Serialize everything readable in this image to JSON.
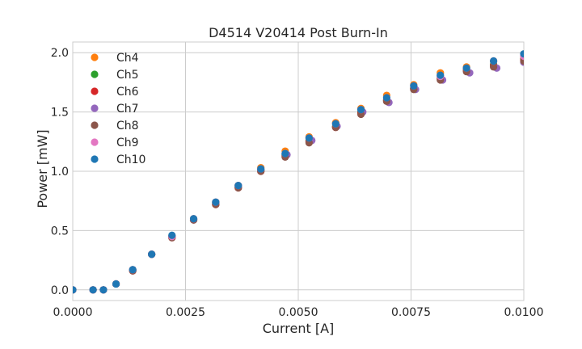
{
  "chart_data": {
    "type": "scatter",
    "title": "D4514 V20414 Post Burn-In",
    "xlabel": "Current [A]",
    "ylabel": "Power [mW]",
    "xlim": [
      0.0,
      0.01
    ],
    "ylim": [
      -0.09,
      2.09
    ],
    "grid": true,
    "legend": "top-left",
    "x_ticks": [
      0.0,
      0.0025,
      0.005,
      0.0075,
      0.01
    ],
    "x_tick_labels": [
      "0.0000",
      "0.0025",
      "0.0050",
      "0.0075",
      "0.0100"
    ],
    "y_ticks": [
      0.0,
      0.5,
      1.0,
      1.5,
      2.0
    ],
    "y_tick_labels": [
      "0.0",
      "0.5",
      "1.0",
      "1.5",
      "2.0"
    ],
    "series": [
      {
        "name": "Ch4",
        "color": "#ff7f0e",
        "x": [
          0.0,
          0.00045,
          0.00068,
          0.00096,
          0.00133,
          0.00175,
          0.0022,
          0.00268,
          0.00317,
          0.00367,
          0.00417,
          0.00471,
          0.00524,
          0.00583,
          0.00639,
          0.00696,
          0.00756,
          0.00815,
          0.00873,
          0.00933,
          0.01
        ],
        "y": [
          0.0,
          0.0,
          0.0,
          0.05,
          0.17,
          0.3,
          0.45,
          0.6,
          0.74,
          0.88,
          1.03,
          1.17,
          1.29,
          1.41,
          1.53,
          1.64,
          1.73,
          1.83,
          1.88,
          1.93,
          1.97
        ]
      },
      {
        "name": "Ch5",
        "color": "#2ca02c",
        "x": [
          0.0,
          0.00045,
          0.00068,
          0.00096,
          0.00133,
          0.00175,
          0.0022,
          0.00268,
          0.00317,
          0.00367,
          0.00417,
          0.00471,
          0.00524,
          0.00583,
          0.00639,
          0.00696,
          0.00756,
          0.00815,
          0.00873,
          0.00933,
          0.01
        ],
        "y": [
          0.0,
          0.0,
          0.0,
          0.05,
          0.17,
          0.3,
          0.45,
          0.59,
          0.73,
          0.87,
          1.01,
          1.14,
          1.26,
          1.38,
          1.5,
          1.6,
          1.7,
          1.79,
          1.86,
          1.9,
          1.95
        ]
      },
      {
        "name": "Ch6",
        "color": "#d62728",
        "x": [
          0.0,
          0.00045,
          0.00068,
          0.00096,
          0.00133,
          0.00175,
          0.0022,
          0.00268,
          0.00317,
          0.00367,
          0.00417,
          0.00471,
          0.00524,
          0.00583,
          0.00639,
          0.00696,
          0.00756,
          0.00815,
          0.00873,
          0.00933,
          0.01
        ],
        "y": [
          0.0,
          0.0,
          0.0,
          0.05,
          0.16,
          0.3,
          0.44,
          0.59,
          0.72,
          0.86,
          1.0,
          1.13,
          1.25,
          1.37,
          1.49,
          1.6,
          1.7,
          1.78,
          1.85,
          1.89,
          1.94
        ]
      },
      {
        "name": "Ch7",
        "color": "#9467bd",
        "x": [
          0.0,
          0.00045,
          0.00068,
          0.00096,
          0.00133,
          0.00175,
          0.0022,
          0.00268,
          0.00317,
          0.00367,
          0.00417,
          0.00475,
          0.0053,
          0.00586,
          0.00643,
          0.00701,
          0.0076,
          0.0082,
          0.0088,
          0.0094,
          0.01
        ],
        "y": [
          0.0,
          0.0,
          0.0,
          0.05,
          0.17,
          0.3,
          0.45,
          0.59,
          0.73,
          0.87,
          1.01,
          1.14,
          1.26,
          1.38,
          1.5,
          1.58,
          1.69,
          1.77,
          1.83,
          1.87,
          1.92
        ]
      },
      {
        "name": "Ch8",
        "color": "#8c564b",
        "x": [
          0.0,
          0.00045,
          0.00068,
          0.00096,
          0.00133,
          0.00175,
          0.0022,
          0.00268,
          0.00317,
          0.00367,
          0.00417,
          0.00471,
          0.00524,
          0.00583,
          0.00639,
          0.00696,
          0.00756,
          0.00815,
          0.00873,
          0.00933,
          0.01
        ],
        "y": [
          0.0,
          0.0,
          0.0,
          0.05,
          0.16,
          0.3,
          0.44,
          0.59,
          0.72,
          0.86,
          1.0,
          1.12,
          1.24,
          1.37,
          1.48,
          1.59,
          1.69,
          1.77,
          1.84,
          1.88,
          1.93
        ]
      },
      {
        "name": "Ch9",
        "color": "#e377c2",
        "x": [
          0.0,
          0.00045,
          0.00068,
          0.00096,
          0.00133,
          0.00175,
          0.0022,
          0.00268,
          0.00317,
          0.00367,
          0.00417,
          0.00471,
          0.00524,
          0.00583,
          0.00639,
          0.00696,
          0.00756,
          0.00815,
          0.00873,
          0.00933,
          0.01
        ],
        "y": [
          0.0,
          0.0,
          0.0,
          0.05,
          0.17,
          0.3,
          0.45,
          0.6,
          0.74,
          0.88,
          1.02,
          1.15,
          1.28,
          1.4,
          1.52,
          1.62,
          1.72,
          1.8,
          1.87,
          1.93,
          1.97
        ]
      },
      {
        "name": "Ch10",
        "color": "#1f77b4",
        "x": [
          0.0,
          0.00045,
          0.00068,
          0.00096,
          0.00133,
          0.00175,
          0.0022,
          0.00268,
          0.00317,
          0.00367,
          0.00417,
          0.00471,
          0.00524,
          0.00583,
          0.00639,
          0.00696,
          0.00756,
          0.00815,
          0.00873,
          0.00933,
          0.01
        ],
        "y": [
          0.0,
          0.0,
          0.0,
          0.05,
          0.17,
          0.3,
          0.46,
          0.6,
          0.74,
          0.88,
          1.02,
          1.15,
          1.28,
          1.4,
          1.52,
          1.62,
          1.72,
          1.81,
          1.87,
          1.93,
          1.99
        ]
      }
    ]
  }
}
